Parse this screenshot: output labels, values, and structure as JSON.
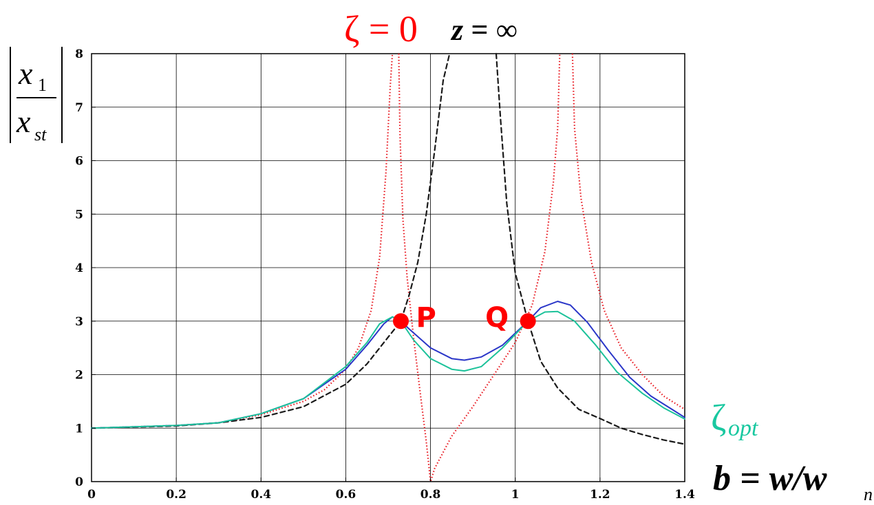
{
  "chart_data": {
    "type": "line",
    "title_zeta": "ζ = 0",
    "title_z": "z = ∞",
    "ylabel_num": "x",
    "ylabel_num_sub": "1",
    "ylabel_den": "x",
    "ylabel_den_sub": "st",
    "xlabel": "b = w/w",
    "xlabel_sub": "n",
    "series_label": "ζ",
    "series_label_sub": "opt",
    "xlim": [
      0,
      1.4
    ],
    "ylim": [
      0,
      8
    ],
    "xticks": [
      "0",
      "0.2",
      "0.4",
      "0.6",
      "0.8",
      "1",
      "1.2",
      "1.4"
    ],
    "yticks": [
      "0",
      "1",
      "2",
      "3",
      "4",
      "5",
      "6",
      "7",
      "8"
    ],
    "grid": true,
    "points": [
      {
        "name": "P",
        "x": 0.73,
        "y": 3.0
      },
      {
        "name": "Q",
        "x": 1.03,
        "y": 3.0
      }
    ],
    "series": [
      {
        "style": "dotted",
        "color": "#e8141c",
        "segments": [
          [
            [
              0,
              1.0
            ],
            [
              0.2,
              1.05
            ],
            [
              0.3,
              1.1
            ],
            [
              0.4,
              1.25
            ],
            [
              0.5,
              1.5
            ],
            [
              0.55,
              1.72
            ],
            [
              0.6,
              2.1
            ],
            [
              0.63,
              2.5
            ],
            [
              0.66,
              3.2
            ],
            [
              0.68,
              4.2
            ],
            [
              0.695,
              5.8
            ],
            [
              0.705,
              7.4
            ],
            [
              0.71,
              8.0
            ]
          ],
          [
            [
              0.725,
              8.0
            ],
            [
              0.728,
              6.5
            ],
            [
              0.735,
              4.9
            ],
            [
              0.745,
              3.8
            ],
            [
              0.76,
              2.7
            ],
            [
              0.775,
              1.7
            ],
            [
              0.79,
              0.75
            ],
            [
              0.8,
              0.0
            ],
            [
              0.81,
              0.25
            ],
            [
              0.85,
              0.85
            ],
            [
              0.9,
              1.4
            ],
            [
              0.95,
              2.0
            ],
            [
              1.0,
              2.6
            ],
            [
              1.04,
              3.3
            ],
            [
              1.07,
              4.3
            ],
            [
              1.09,
              5.6
            ],
            [
              1.1,
              6.6
            ],
            [
              1.105,
              8.0
            ]
          ],
          [
            [
              1.135,
              8.0
            ],
            [
              1.14,
              6.6
            ],
            [
              1.155,
              5.3
            ],
            [
              1.18,
              4.1
            ],
            [
              1.21,
              3.2
            ],
            [
              1.25,
              2.5
            ],
            [
              1.3,
              2.0
            ],
            [
              1.35,
              1.6
            ],
            [
              1.4,
              1.35
            ]
          ]
        ]
      },
      {
        "style": "dashed",
        "color": "#1a1a1a",
        "segments": [
          [
            [
              0,
              1.0
            ],
            [
              0.2,
              1.04
            ],
            [
              0.3,
              1.1
            ],
            [
              0.4,
              1.2
            ],
            [
              0.5,
              1.4
            ],
            [
              0.6,
              1.82
            ],
            [
              0.65,
              2.2
            ],
            [
              0.7,
              2.7
            ],
            [
              0.73,
              3.0
            ],
            [
              0.75,
              3.5
            ],
            [
              0.77,
              4.1
            ],
            [
              0.79,
              5.0
            ],
            [
              0.81,
              6.2
            ],
            [
              0.83,
              7.5
            ],
            [
              0.845,
              8.0
            ]
          ],
          [
            [
              0.955,
              8.0
            ],
            [
              0.965,
              6.8
            ],
            [
              0.98,
              5.2
            ],
            [
              1.0,
              3.9
            ],
            [
              1.03,
              3.0
            ],
            [
              1.06,
              2.25
            ],
            [
              1.1,
              1.75
            ],
            [
              1.15,
              1.35
            ],
            [
              1.2,
              1.18
            ],
            [
              1.25,
              1.0
            ],
            [
              1.3,
              0.88
            ],
            [
              1.35,
              0.78
            ],
            [
              1.4,
              0.7
            ]
          ]
        ]
      },
      {
        "style": "solid",
        "color": "#2a36c8",
        "segments": [
          [
            [
              0,
              1.0
            ],
            [
              0.2,
              1.05
            ],
            [
              0.3,
              1.1
            ],
            [
              0.4,
              1.27
            ],
            [
              0.5,
              1.55
            ],
            [
              0.6,
              2.1
            ],
            [
              0.65,
              2.55
            ],
            [
              0.69,
              2.95
            ],
            [
              0.71,
              3.08
            ],
            [
              0.73,
              3.0
            ],
            [
              0.75,
              2.85
            ],
            [
              0.8,
              2.5
            ],
            [
              0.85,
              2.3
            ],
            [
              0.88,
              2.27
            ],
            [
              0.92,
              2.33
            ],
            [
              0.97,
              2.55
            ],
            [
              1.03,
              3.0
            ],
            [
              1.06,
              3.25
            ],
            [
              1.1,
              3.37
            ],
            [
              1.13,
              3.3
            ],
            [
              1.17,
              2.98
            ],
            [
              1.22,
              2.45
            ],
            [
              1.27,
              1.95
            ],
            [
              1.32,
              1.6
            ],
            [
              1.37,
              1.35
            ],
            [
              1.4,
              1.2
            ]
          ]
        ]
      },
      {
        "style": "solid",
        "color": "#1cc29a",
        "segments": [
          [
            [
              0,
              1.0
            ],
            [
              0.2,
              1.05
            ],
            [
              0.3,
              1.1
            ],
            [
              0.4,
              1.27
            ],
            [
              0.5,
              1.55
            ],
            [
              0.6,
              2.15
            ],
            [
              0.65,
              2.6
            ],
            [
              0.68,
              2.95
            ],
            [
              0.71,
              3.08
            ],
            [
              0.73,
              3.0
            ],
            [
              0.76,
              2.65
            ],
            [
              0.8,
              2.3
            ],
            [
              0.85,
              2.1
            ],
            [
              0.88,
              2.07
            ],
            [
              0.92,
              2.15
            ],
            [
              0.97,
              2.5
            ],
            [
              1.03,
              3.0
            ],
            [
              1.07,
              3.17
            ],
            [
              1.1,
              3.18
            ],
            [
              1.14,
              3.0
            ],
            [
              1.19,
              2.55
            ],
            [
              1.24,
              2.05
            ],
            [
              1.3,
              1.65
            ],
            [
              1.35,
              1.38
            ],
            [
              1.4,
              1.17
            ]
          ]
        ]
      }
    ]
  },
  "colors": {
    "zeta_zero": "#ff0000",
    "zeta_opt": "#19c8a0",
    "point_marker": "#ff0000"
  }
}
